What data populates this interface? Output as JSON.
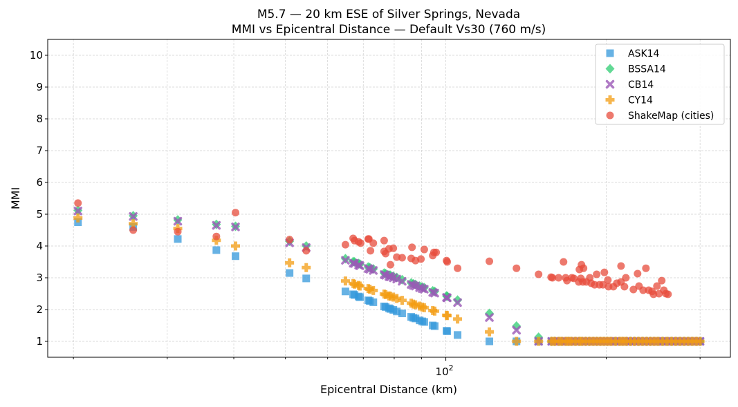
{
  "chart_data": {
    "type": "scatter",
    "title": "M5.7 — 20 km ESE of Silver Springs, Nevada",
    "subtitle": "MMI vs Epicentral Distance — Default Vs30 (760 m/s)",
    "xlabel": "Epicentral Distance (km)",
    "ylabel": "MMI",
    "x_scale": "log",
    "xlim": [
      17.9,
      342
    ],
    "ylim": [
      0.5,
      10.5
    ],
    "y_ticks": [
      1,
      2,
      3,
      4,
      5,
      6,
      7,
      8,
      9,
      10
    ],
    "x_major_ticks": [
      {
        "value": 100,
        "base": "10",
        "exp": "2"
      }
    ],
    "x_minor_ticks": [
      20,
      30,
      40,
      50,
      60,
      70,
      80,
      90,
      200,
      300
    ],
    "grid": true,
    "legend_position": "top-right",
    "model_x": [
      20.4,
      25.9,
      31.4,
      37.1,
      40.3,
      50.9,
      54.7,
      64.8,
      67.0,
      67.4,
      68.6,
      69.0,
      71.5,
      72.0,
      73.1,
      76.6,
      77.1,
      78.2,
      78.7,
      79.7,
      80.9,
      82.8,
      86.1,
      86.9,
      87.7,
      89.3,
      90.3,
      91.1,
      94.5,
      95.3,
      100.3,
      100.6,
      105.2,
      120.7,
      135.7,
      149.3,
      158,
      160,
      163,
      165,
      168,
      170,
      172,
      175,
      178,
      180,
      183,
      186,
      189,
      192,
      195,
      198,
      201,
      204,
      208,
      212,
      215,
      218,
      222,
      226,
      230,
      234,
      238,
      242,
      246,
      250,
      255,
      260,
      265,
      270,
      275,
      280,
      285,
      290,
      295,
      300
    ],
    "series": [
      {
        "name": "ASK14",
        "marker": "square",
        "color": "#3498db",
        "y": [
          4.75,
          4.6,
          4.22,
          3.87,
          3.68,
          3.15,
          2.98,
          2.57,
          2.48,
          2.46,
          2.41,
          2.39,
          2.29,
          2.27,
          2.23,
          2.1,
          2.08,
          2.04,
          2.02,
          1.99,
          1.94,
          1.88,
          1.77,
          1.74,
          1.72,
          1.66,
          1.63,
          1.61,
          1.5,
          1.48,
          1.33,
          1.32,
          1.2,
          1.0,
          1.0,
          1.0,
          1,
          1,
          1,
          1,
          1,
          1,
          1,
          1,
          1,
          1,
          1,
          1,
          1,
          1,
          1,
          1,
          1,
          1,
          1,
          1,
          1,
          1,
          1,
          1,
          1,
          1,
          1,
          1,
          1,
          1,
          1,
          1,
          1,
          1,
          1,
          1,
          1,
          1,
          1,
          1
        ]
      },
      {
        "name": "BSSA14",
        "marker": "diamond",
        "color": "#2ecc71",
        "y": [
          5.12,
          4.95,
          4.82,
          4.68,
          4.62,
          4.15,
          4.0,
          3.6,
          3.51,
          3.5,
          3.45,
          3.43,
          3.34,
          3.32,
          3.28,
          3.15,
          3.13,
          3.09,
          3.08,
          3.05,
          3.01,
          2.94,
          2.84,
          2.81,
          2.79,
          2.74,
          2.71,
          2.69,
          2.59,
          2.57,
          2.43,
          2.42,
          2.3,
          1.88,
          1.48,
          1.13,
          1,
          1,
          1,
          1,
          1,
          1,
          1,
          1,
          1,
          1,
          1,
          1,
          1,
          1,
          1,
          1,
          1,
          1,
          1,
          1,
          1,
          1,
          1,
          1,
          1,
          1,
          1,
          1,
          1,
          1,
          1,
          1,
          1,
          1,
          1,
          1,
          1,
          1,
          1,
          1
        ]
      },
      {
        "name": "CB14",
        "marker": "x",
        "color": "#9b59b6",
        "y": [
          5.1,
          4.93,
          4.78,
          4.65,
          4.6,
          4.1,
          3.95,
          3.55,
          3.46,
          3.45,
          3.4,
          3.38,
          3.29,
          3.27,
          3.23,
          3.1,
          3.08,
          3.04,
          3.03,
          3.0,
          2.96,
          2.89,
          2.79,
          2.76,
          2.74,
          2.69,
          2.66,
          2.64,
          2.54,
          2.52,
          2.38,
          2.37,
          2.22,
          1.75,
          1.35,
          1.0,
          1,
          1,
          1,
          1,
          1,
          1,
          1,
          1,
          1,
          1,
          1,
          1,
          1,
          1,
          1,
          1,
          1,
          1,
          1,
          1,
          1,
          1,
          1,
          1,
          1,
          1,
          1,
          1,
          1,
          1,
          1,
          1,
          1,
          1,
          1,
          1,
          1,
          1,
          1,
          1
        ]
      },
      {
        "name": "CY14",
        "marker": "plus",
        "color": "#f39c12",
        "y": [
          4.88,
          4.7,
          4.55,
          4.18,
          4.0,
          3.47,
          3.32,
          2.9,
          2.82,
          2.8,
          2.76,
          2.74,
          2.66,
          2.64,
          2.6,
          2.49,
          2.47,
          2.43,
          2.42,
          2.39,
          2.35,
          2.29,
          2.2,
          2.17,
          2.15,
          2.11,
          2.08,
          2.06,
          1.97,
          1.95,
          1.82,
          1.81,
          1.7,
          1.3,
          1.0,
          1.0,
          1,
          1,
          1,
          1,
          1,
          1,
          1,
          1,
          1,
          1,
          1,
          1,
          1,
          1,
          1,
          1,
          1,
          1,
          1,
          1,
          1,
          1,
          1,
          1,
          1,
          1,
          1,
          1,
          1,
          1,
          1,
          1,
          1,
          1,
          1,
          1,
          1,
          1,
          1,
          1
        ]
      },
      {
        "name": "ShakeMap (cities)",
        "marker": "circle",
        "color": "#e74c3c",
        "x": [
          20.4,
          25.9,
          31.4,
          37.1,
          40.3,
          50.9,
          54.7,
          64.8,
          67.0,
          67.4,
          68.6,
          69.2,
          71.5,
          71.7,
          73.1,
          72.2,
          76.6,
          76.6,
          77.1,
          78.2,
          79.7,
          78.7,
          80.9,
          82.8,
          86.4,
          86.1,
          87.7,
          89.8,
          91.1,
          94.5,
          95.0,
          95.9,
          100.3,
          100.6,
          105.2,
          120.7,
          135.7,
          149.3,
          157.6,
          158.5,
          162.8,
          166.3,
          167.8,
          168.8,
          172.4,
          173.9,
          177.6,
          178.1,
          179.7,
          181.3,
          179.2,
          180.8,
          183.5,
          186.3,
          187.4,
          190.2,
          191.9,
          194.2,
          197.2,
          198.4,
          201.4,
          202.0,
          206.3,
          209.4,
          213.2,
          213.2,
          216.4,
          217.7,
          224.9,
          229.0,
          230.4,
          234.6,
          237.4,
          240.3,
          243.8,
          245.3,
          249.0,
          251.2,
          254.2,
          256.5,
          258.8,
          261.2
        ],
        "y": [
          5.35,
          4.5,
          4.45,
          4.3,
          5.05,
          4.2,
          3.85,
          4.04,
          4.24,
          4.17,
          4.13,
          4.09,
          4.22,
          4.22,
          4.09,
          3.85,
          4.17,
          3.83,
          3.76,
          3.91,
          3.93,
          3.41,
          3.65,
          3.63,
          3.96,
          3.61,
          3.54,
          3.59,
          3.89,
          3.7,
          3.8,
          3.8,
          3.54,
          3.5,
          3.3,
          3.52,
          3.3,
          3.11,
          3.02,
          3.0,
          3.0,
          3.5,
          3.0,
          2.91,
          3.0,
          2.98,
          2.87,
          3.26,
          3.41,
          3.3,
          2.98,
          2.87,
          2.87,
          3.0,
          2.83,
          2.78,
          3.11,
          2.78,
          2.78,
          3.17,
          2.93,
          2.72,
          2.72,
          2.83,
          2.87,
          3.37,
          2.72,
          3.0,
          2.63,
          3.13,
          2.74,
          2.61,
          3.3,
          2.61,
          2.57,
          2.48,
          2.74,
          2.5,
          2.91,
          2.61,
          2.5,
          2.48
        ]
      }
    ]
  }
}
